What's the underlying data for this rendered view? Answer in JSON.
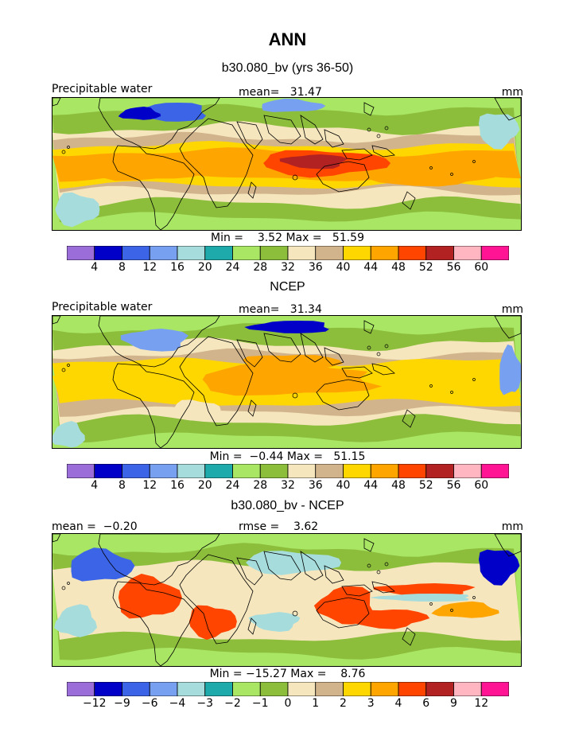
{
  "title": "ANN",
  "colors": [
    "#9a6dd9",
    "#0000c8",
    "#3c64e6",
    "#78a0f0",
    "#a6dcdc",
    "#1eaaaa",
    "#a8e664",
    "#8cbe3c",
    "#f5e6be",
    "#d2b48c",
    "#ffd700",
    "#ffa500",
    "#ff4500",
    "#b22222",
    "#ffb6c1",
    "#ff1493"
  ],
  "panels": [
    {
      "subtitle": "b30.080_bv (yrs 36-50)",
      "left_label": "Precipitable water",
      "center_label": "mean=   31.47",
      "right_label": "mm",
      "minmax": "Min =    3.52 Max =   51.59",
      "contour_levels": [
        "4",
        "8",
        "12",
        "16",
        "20",
        "24",
        "28",
        "32",
        "36",
        "40",
        "44",
        "48",
        "52",
        "56",
        "60"
      ]
    },
    {
      "subtitle": "NCEP",
      "left_label": "Precipitable water",
      "center_label": "mean=   31.34",
      "right_label": "mm",
      "minmax": "Min =  −0.44 Max =   51.15",
      "contour_levels": [
        "4",
        "8",
        "12",
        "16",
        "20",
        "24",
        "28",
        "32",
        "36",
        "40",
        "44",
        "48",
        "52",
        "56",
        "60"
      ]
    },
    {
      "subtitle": "b30.080_bv - NCEP",
      "left_label": "mean =  −0.20",
      "center_label": "rmse =    3.62",
      "right_label": "mm",
      "minmax": "Min = −15.27 Max =    8.76",
      "contour_levels": [
        "−12",
        "−9",
        "−6",
        "−4",
        "−3",
        "−2",
        "−1",
        "0",
        "1",
        "2",
        "3",
        "4",
        "6",
        "9",
        "12"
      ]
    }
  ]
}
